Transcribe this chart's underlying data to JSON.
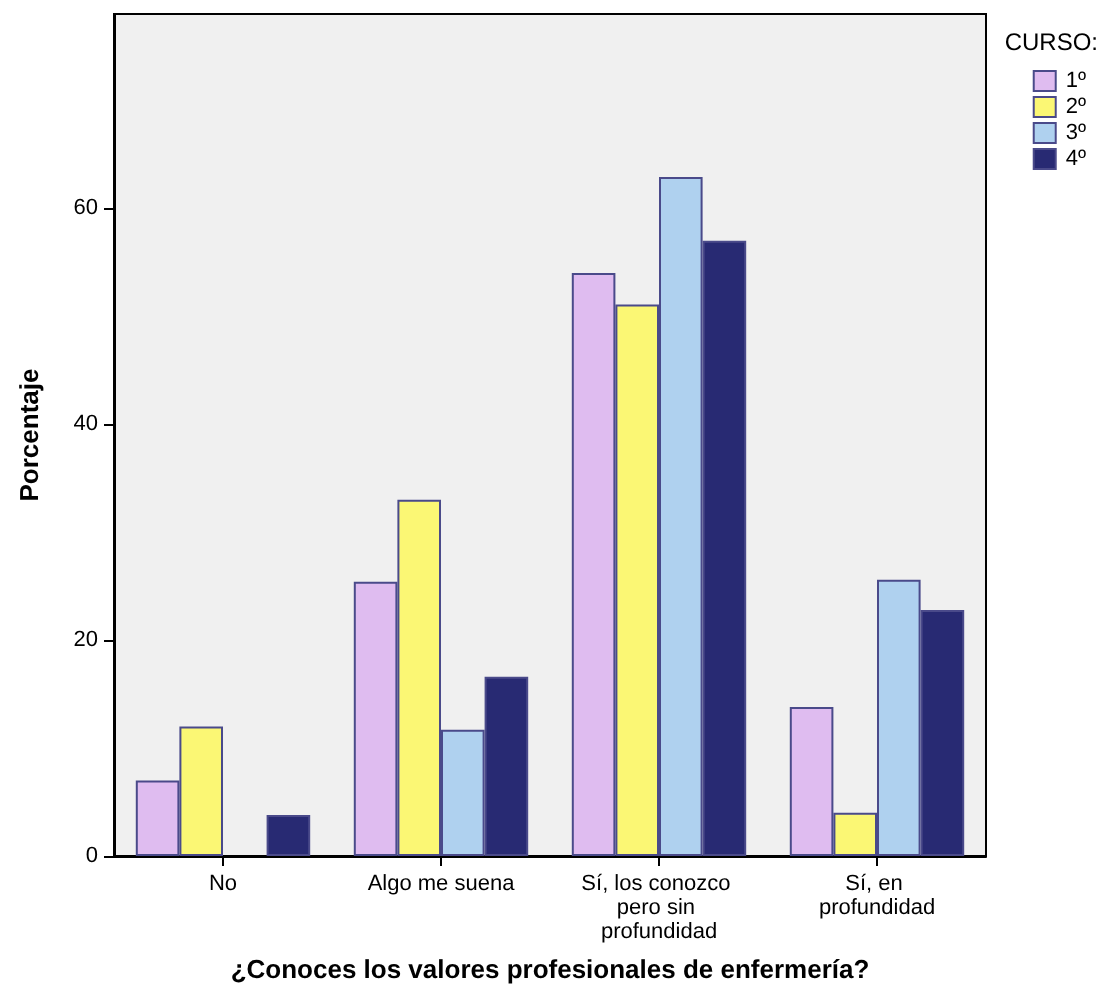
{
  "chart_data": {
    "type": "bar",
    "xlabel": "¿Conoces los valores profesionales de enfermería?",
    "ylabel": "Porcentaje",
    "legend_title": "CURSO:",
    "categories": [
      "No",
      "Algo me suena",
      "Sí, los conozco pero sin profundidad",
      "Sí, en profundidad"
    ],
    "series": [
      {
        "name": "1º",
        "color": "#dfbcf0",
        "values": [
          7.0,
          25.4,
          54.0,
          13.8
        ]
      },
      {
        "name": "2º",
        "color": "#fbf774",
        "values": [
          12.0,
          33.0,
          51.1,
          4.0
        ]
      },
      {
        "name": "3º",
        "color": "#afd1ef",
        "values": [
          0,
          11.7,
          62.9,
          25.6
        ]
      },
      {
        "name": "4º",
        "color": "#282a73",
        "values": [
          3.8,
          16.6,
          57.0,
          22.8
        ]
      }
    ],
    "ylim": [
      0,
      78
    ],
    "yticks": [
      0,
      20,
      40,
      60
    ],
    "grid": false,
    "legend": "top right"
  }
}
